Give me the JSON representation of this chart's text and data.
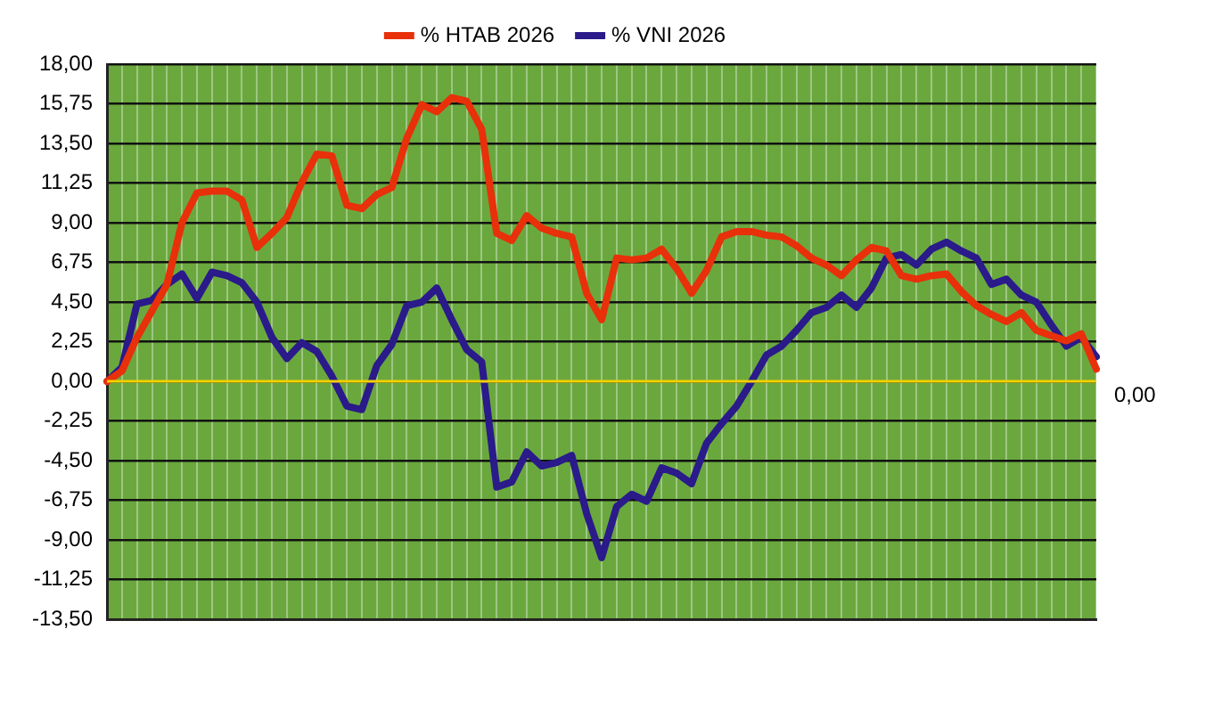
{
  "chart_data": {
    "type": "line",
    "categories": [
      null,
      null,
      null,
      null,
      null,
      null,
      null,
      null,
      null,
      null,
      null,
      null,
      null,
      null,
      null,
      null,
      null,
      null,
      null,
      null,
      null,
      null,
      null,
      null,
      null,
      null,
      null,
      null,
      null,
      null,
      null,
      null,
      null,
      null,
      null,
      null,
      null,
      null,
      null,
      null,
      null,
      null,
      null,
      null,
      null,
      null,
      null,
      null,
      null,
      null,
      null,
      null,
      null,
      null,
      null,
      null,
      null,
      null,
      null,
      null,
      null,
      null,
      null,
      null,
      null,
      null,
      null
    ],
    "series": [
      {
        "name": "% HTAB 2026",
        "color": "#e8300a",
        "values": [
          0,
          0.6,
          2.5,
          4.0,
          5.5,
          9.0,
          10.7,
          10.8,
          10.8,
          10.3,
          7.6,
          8.4,
          9.3,
          11.3,
          12.9,
          12.8,
          10.0,
          9.8,
          10.6,
          11.0,
          13.8,
          15.7,
          15.3,
          16.1,
          15.9,
          14.3,
          8.4,
          8.0,
          9.4,
          8.7,
          8.4,
          8.2,
          5.0,
          3.5,
          7.0,
          6.9,
          7.0,
          7.5,
          6.4,
          5.0,
          6.3,
          8.2,
          8.5,
          8.5,
          8.3,
          8.2,
          7.7,
          7.0,
          6.6,
          6.0,
          6.9,
          7.6,
          7.4,
          6.0,
          5.8,
          6.0,
          6.1,
          5.1,
          4.3,
          3.8,
          3.4,
          3.9,
          2.9,
          2.6,
          2.3,
          2.7,
          0.7
        ]
      },
      {
        "name": "% VNI 2026",
        "color": "#2a1a8a",
        "values": [
          0,
          0.8,
          4.4,
          4.6,
          5.5,
          6.1,
          4.7,
          6.2,
          6.0,
          5.6,
          4.5,
          2.5,
          1.3,
          2.2,
          1.7,
          0.3,
          -1.4,
          -1.6,
          0.9,
          2.1,
          4.3,
          4.5,
          5.3,
          3.5,
          1.8,
          1.1,
          -6.0,
          -5.7,
          -4.0,
          -4.8,
          -4.6,
          -4.2,
          -7.5,
          -10.0,
          -7.1,
          -6.4,
          -6.8,
          -4.9,
          -5.2,
          -5.8,
          -3.5,
          -2.4,
          -1.4,
          0,
          1.5,
          2.0,
          2.9,
          3.9,
          4.2,
          4.9,
          4.2,
          5.3,
          7.0,
          7.2,
          6.6,
          7.5,
          7.9,
          7.4,
          7.0,
          5.5,
          5.8,
          4.9,
          4.5,
          3.2,
          2.0,
          2.5,
          1.4
        ]
      }
    ],
    "ylim": [
      -13.5,
      18
    ],
    "yticks": [
      {
        "value": 18,
        "label": "18,00"
      },
      {
        "value": 15.75,
        "label": "15,75"
      },
      {
        "value": 13.5,
        "label": "13,50"
      },
      {
        "value": 11.25,
        "label": "11,25"
      },
      {
        "value": 9,
        "label": "9,00"
      },
      {
        "value": 6.75,
        "label": "6,75"
      },
      {
        "value": 4.5,
        "label": "4,50"
      },
      {
        "value": 2.25,
        "label": "2,25"
      },
      {
        "value": 0,
        "label": "0,00"
      },
      {
        "value": -2.25,
        "label": "-2,25"
      },
      {
        "value": -4.5,
        "label": "-4,50"
      },
      {
        "value": -6.75,
        "label": "-6,75"
      },
      {
        "value": -9,
        "label": "-9,00"
      },
      {
        "value": -11.25,
        "label": "-11,25"
      },
      {
        "value": -13.5,
        "label": "-13,50"
      }
    ],
    "ref_lines": [
      {
        "axis": "y",
        "value": 0,
        "color": "#f5d000"
      }
    ],
    "annotations": [
      "0,00"
    ],
    "grid": true,
    "legend": "top",
    "marker": "none",
    "line_style": "solid"
  }
}
